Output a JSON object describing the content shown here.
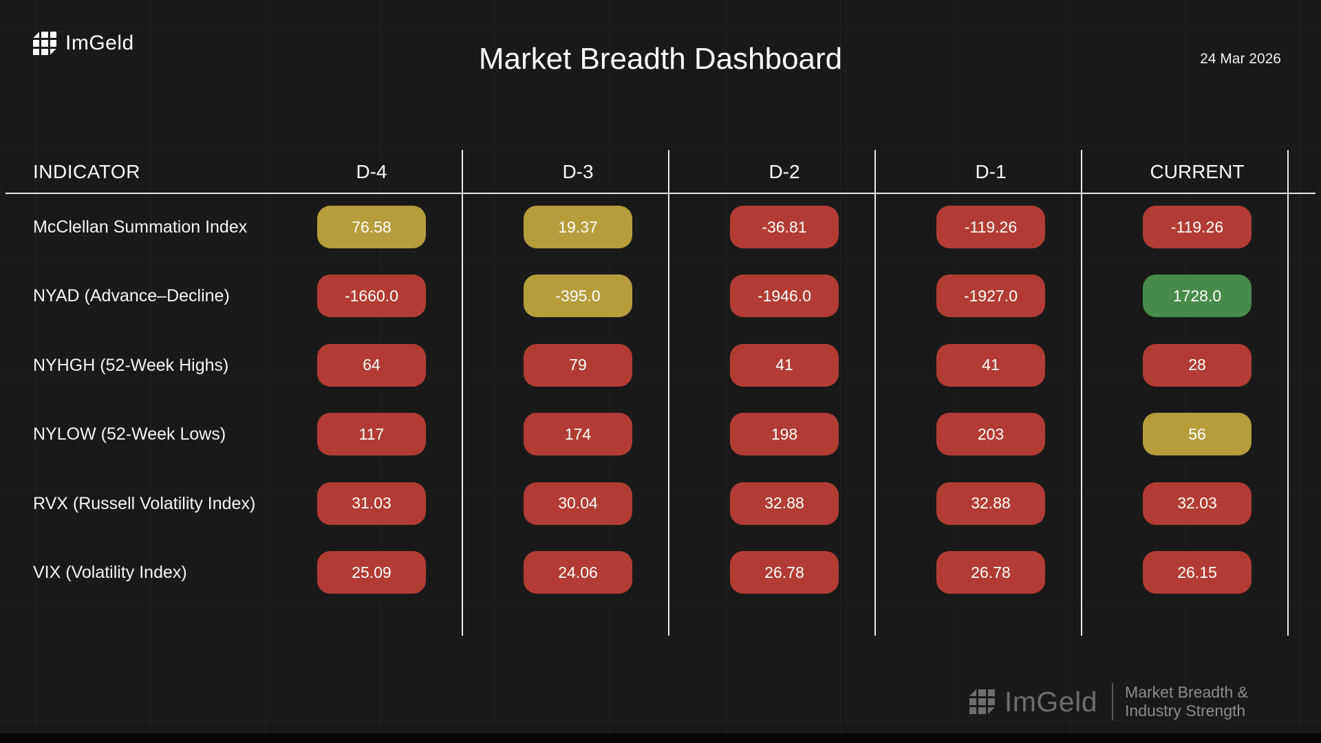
{
  "header": {
    "brand": "ImGeld",
    "title": "Market Breadth Dashboard",
    "date": "24 Mar 2026"
  },
  "table": {
    "indicator_header": "INDICATOR",
    "columns": [
      "D-4",
      "D-3",
      "D-2",
      "D-1",
      "CURRENT"
    ],
    "rows": [
      {
        "label": "McClellan Summation Index",
        "cells": [
          {
            "value": "76.58",
            "status": "warn"
          },
          {
            "value": "19.37",
            "status": "warn"
          },
          {
            "value": "-36.81",
            "status": "bad"
          },
          {
            "value": "-119.26",
            "status": "bad"
          },
          {
            "value": "-119.26",
            "status": "bad"
          }
        ]
      },
      {
        "label": "NYAD (Advance–Decline)",
        "cells": [
          {
            "value": "-1660.0",
            "status": "bad"
          },
          {
            "value": "-395.0",
            "status": "warn"
          },
          {
            "value": "-1946.0",
            "status": "bad"
          },
          {
            "value": "-1927.0",
            "status": "bad"
          },
          {
            "value": "1728.0",
            "status": "good"
          }
        ]
      },
      {
        "label": "NYHGH (52-Week Highs)",
        "cells": [
          {
            "value": "64",
            "status": "bad"
          },
          {
            "value": "79",
            "status": "bad"
          },
          {
            "value": "41",
            "status": "bad"
          },
          {
            "value": "41",
            "status": "bad"
          },
          {
            "value": "28",
            "status": "bad"
          }
        ]
      },
      {
        "label": "NYLOW (52-Week Lows)",
        "cells": [
          {
            "value": "117",
            "status": "bad"
          },
          {
            "value": "174",
            "status": "bad"
          },
          {
            "value": "198",
            "status": "bad"
          },
          {
            "value": "203",
            "status": "bad"
          },
          {
            "value": "56",
            "status": "warn"
          }
        ]
      },
      {
        "label": "RVX (Russell Volatility Index)",
        "cells": [
          {
            "value": "31.03",
            "status": "bad"
          },
          {
            "value": "30.04",
            "status": "bad"
          },
          {
            "value": "32.88",
            "status": "bad"
          },
          {
            "value": "32.88",
            "status": "bad"
          },
          {
            "value": "32.03",
            "status": "bad"
          }
        ]
      },
      {
        "label": "VIX (Volatility Index)",
        "cells": [
          {
            "value": "25.09",
            "status": "bad"
          },
          {
            "value": "24.06",
            "status": "bad"
          },
          {
            "value": "26.78",
            "status": "bad"
          },
          {
            "value": "26.78",
            "status": "bad"
          },
          {
            "value": "26.15",
            "status": "bad"
          }
        ]
      }
    ],
    "status_colors": {
      "bad": "#b23c33",
      "warn": "#b59d3c",
      "good": "#478b4b"
    }
  },
  "footer": {
    "brand": "ImGeld",
    "tagline_line1": "Market Breadth &",
    "tagline_line2": "Industry Strength"
  },
  "chart_data": {
    "type": "table",
    "title": "Market Breadth Dashboard",
    "date": "24 Mar 2026",
    "columns": [
      "INDICATOR",
      "D-4",
      "D-3",
      "D-2",
      "D-1",
      "CURRENT"
    ],
    "rows": [
      {
        "indicator": "McClellan Summation Index",
        "values": [
          76.58,
          19.37,
          -36.81,
          -119.26,
          -119.26
        ],
        "statuses": [
          "warn",
          "warn",
          "bad",
          "bad",
          "bad"
        ]
      },
      {
        "indicator": "NYAD (Advance–Decline)",
        "values": [
          -1660.0,
          -395.0,
          -1946.0,
          -1927.0,
          1728.0
        ],
        "statuses": [
          "bad",
          "warn",
          "bad",
          "bad",
          "good"
        ]
      },
      {
        "indicator": "NYHGH (52-Week Highs)",
        "values": [
          64,
          79,
          41,
          41,
          28
        ],
        "statuses": [
          "bad",
          "bad",
          "bad",
          "bad",
          "bad"
        ]
      },
      {
        "indicator": "NYLOW (52-Week Lows)",
        "values": [
          117,
          174,
          198,
          203,
          56
        ],
        "statuses": [
          "bad",
          "bad",
          "bad",
          "bad",
          "warn"
        ]
      },
      {
        "indicator": "RVX (Russell Volatility Index)",
        "values": [
          31.03,
          30.04,
          32.88,
          32.88,
          32.03
        ],
        "statuses": [
          "bad",
          "bad",
          "bad",
          "bad",
          "bad"
        ]
      },
      {
        "indicator": "VIX (Volatility Index)",
        "values": [
          25.09,
          24.06,
          26.78,
          26.78,
          26.15
        ],
        "statuses": [
          "bad",
          "bad",
          "bad",
          "bad",
          "bad"
        ]
      }
    ],
    "status_color_legend": {
      "bad": "#b23c33",
      "warn": "#b59d3c",
      "good": "#478b4b"
    }
  }
}
